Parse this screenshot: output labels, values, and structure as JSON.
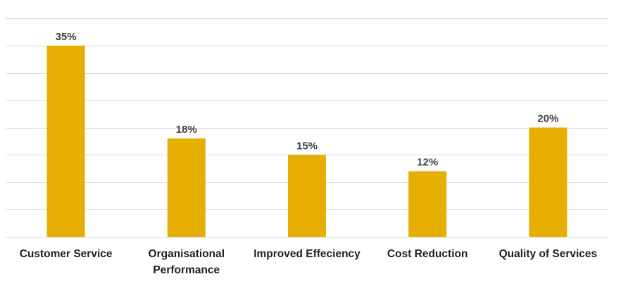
{
  "chart_data": {
    "type": "bar",
    "title": "",
    "xlabel": "",
    "ylabel": "",
    "categories": [
      [
        "Customer Service"
      ],
      [
        "Organisational",
        "Performance"
      ],
      [
        "Improved Effeciency"
      ],
      [
        "Cost Reduction"
      ],
      [
        "Quality of Services"
      ]
    ],
    "values": [
      35,
      18,
      15,
      12,
      20
    ],
    "value_labels": [
      "35%",
      "18%",
      "15%",
      "12%",
      "20%"
    ],
    "ylim": [
      0,
      40
    ],
    "grid": true,
    "gridline_step": 5,
    "y_tick_labels_visible": false,
    "bar_color": "#E5AE00",
    "gridline_color": "#D9D9D9",
    "value_label_color": "#404040",
    "category_label_color": "#1F1F1F"
  }
}
